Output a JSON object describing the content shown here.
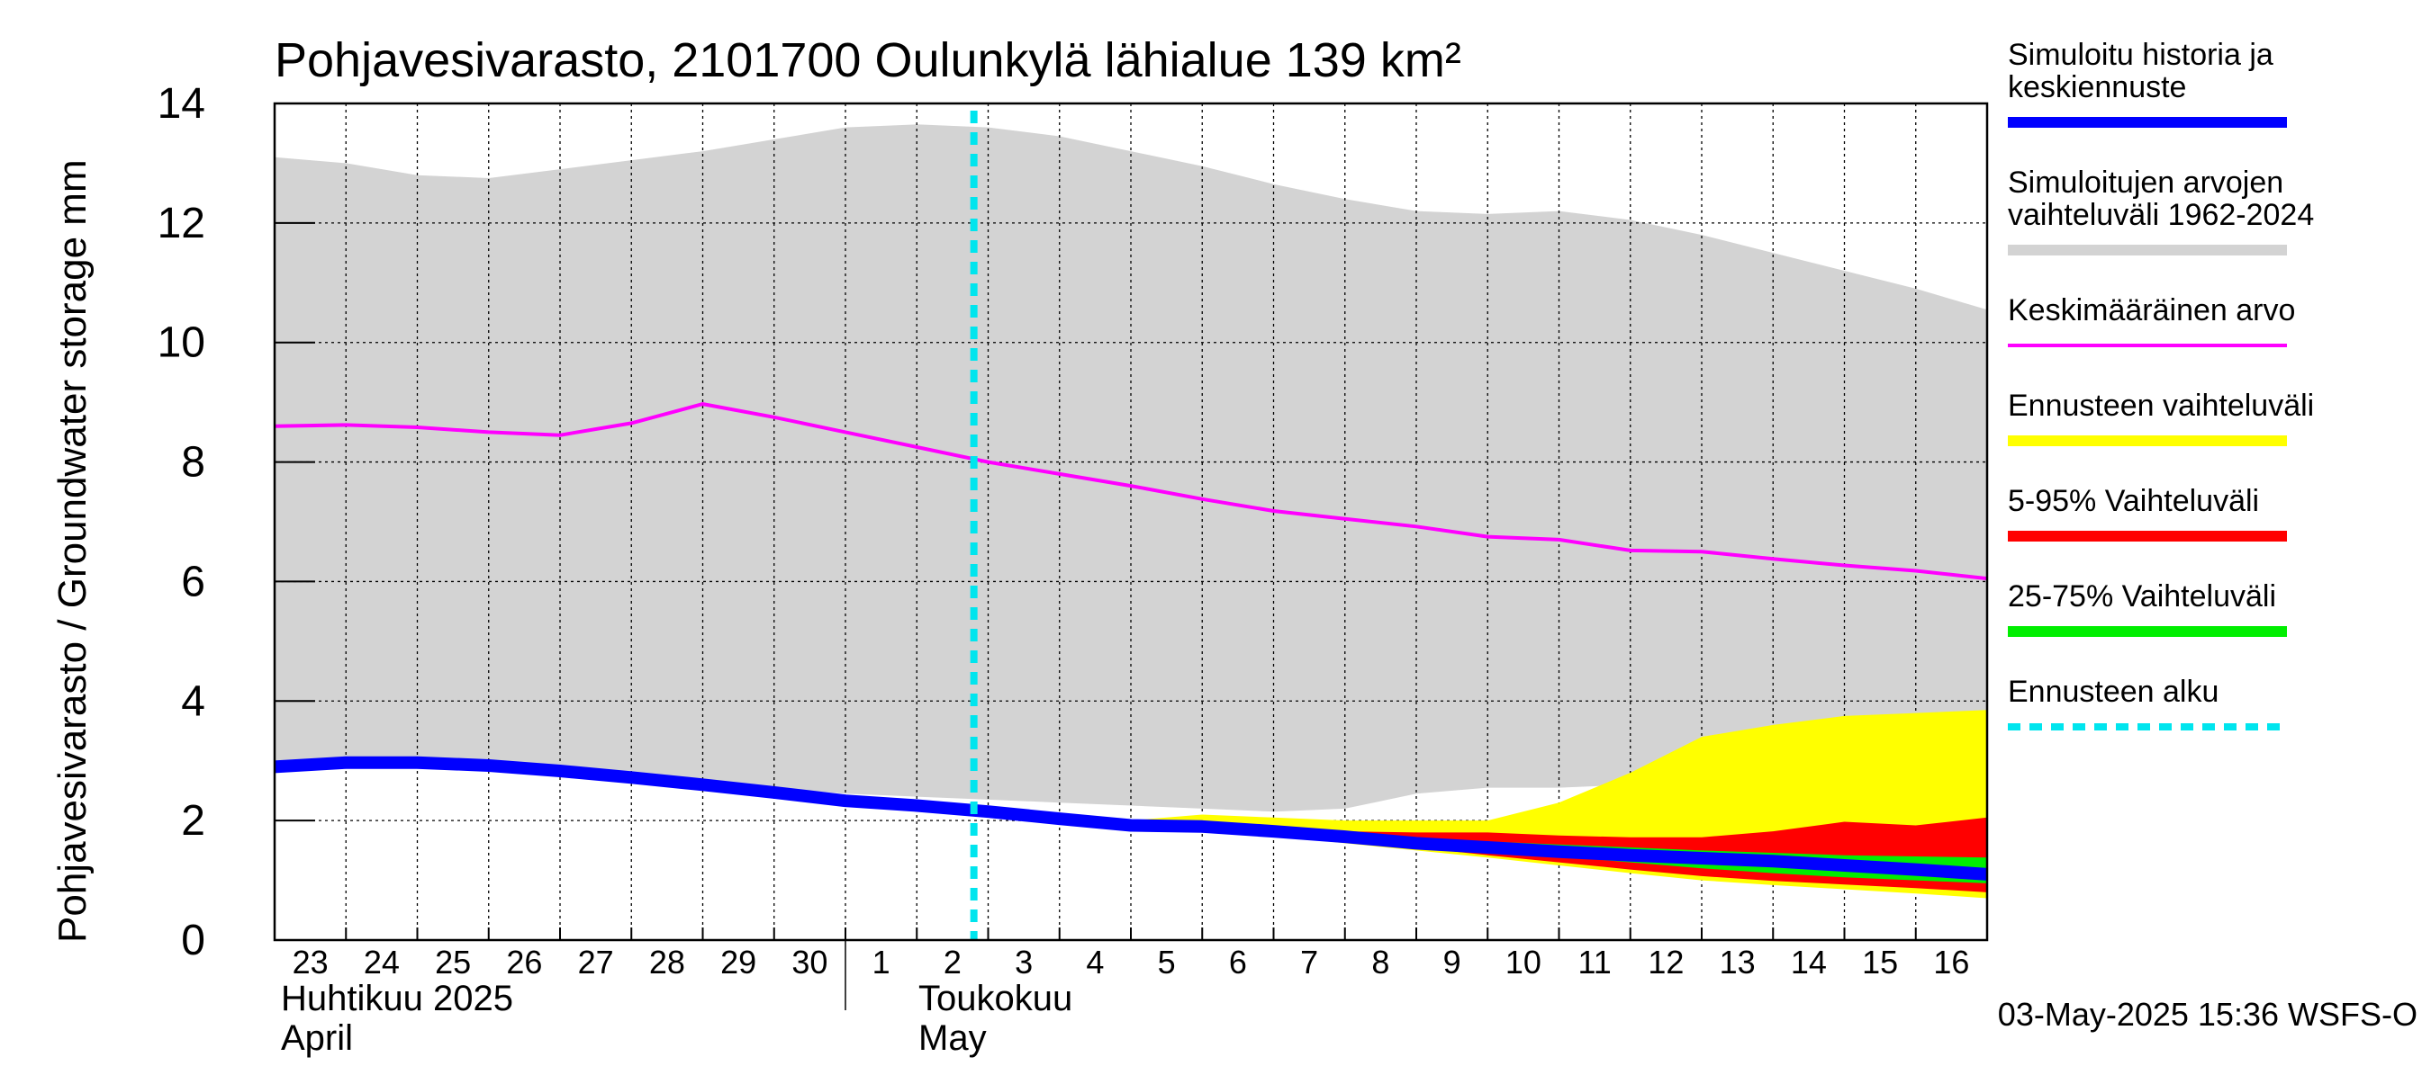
{
  "chart_data": {
    "type": "area",
    "title": "Pohjavesivarasto, 2101700 Oulunkylä lähialue 139 km²",
    "ylabel": "Pohjavesivarasto / Groundwater storage   mm",
    "ylim": [
      0,
      14
    ],
    "yticks": [
      0,
      2,
      4,
      6,
      8,
      10,
      12,
      14
    ],
    "grid": true,
    "legend_position": "right",
    "x_day_start": 23,
    "x_day_end": 47,
    "x_ticks": [
      {
        "day": 23,
        "label": "23"
      },
      {
        "day": 24,
        "label": "24"
      },
      {
        "day": 25,
        "label": "25"
      },
      {
        "day": 26,
        "label": "26"
      },
      {
        "day": 27,
        "label": "27"
      },
      {
        "day": 28,
        "label": "28"
      },
      {
        "day": 29,
        "label": "29"
      },
      {
        "day": 30,
        "label": "30"
      },
      {
        "day": 31,
        "label": "1"
      },
      {
        "day": 32,
        "label": "2"
      },
      {
        "day": 33,
        "label": "3"
      },
      {
        "day": 34,
        "label": "4"
      },
      {
        "day": 35,
        "label": "5"
      },
      {
        "day": 36,
        "label": "6"
      },
      {
        "day": 37,
        "label": "7"
      },
      {
        "day": 38,
        "label": "8"
      },
      {
        "day": 39,
        "label": "9"
      },
      {
        "day": 40,
        "label": "10"
      },
      {
        "day": 41,
        "label": "11"
      },
      {
        "day": 42,
        "label": "12"
      },
      {
        "day": 43,
        "label": "13"
      },
      {
        "day": 44,
        "label": "14"
      },
      {
        "day": 45,
        "label": "15"
      },
      {
        "day": 46,
        "label": "16"
      }
    ],
    "month_labels": [
      {
        "day": 23,
        "line1": "Huhtikuu  2025",
        "line2": "April"
      },
      {
        "day": 31,
        "line1": "Toukokuu",
        "line2": "May"
      }
    ],
    "forecast_start_day": 33,
    "history_range": {
      "name": "Simuloitujen arvojen vaihteluväli 1962-2024",
      "color": "#d3d3d3",
      "x": [
        23,
        24,
        25,
        26,
        27,
        28,
        29,
        30,
        31,
        32,
        33,
        34,
        35,
        36,
        37,
        38,
        39,
        40,
        41,
        42,
        43,
        44,
        45,
        46,
        47
      ],
      "upper": [
        13.1,
        13.0,
        12.8,
        12.75,
        12.9,
        13.05,
        13.2,
        13.4,
        13.6,
        13.65,
        13.6,
        13.45,
        13.2,
        12.95,
        12.65,
        12.4,
        12.2,
        12.15,
        12.2,
        12.05,
        11.8,
        11.5,
        11.2,
        10.9,
        10.55
      ],
      "lower": [
        3.0,
        3.0,
        2.95,
        2.9,
        2.85,
        2.75,
        2.65,
        2.55,
        2.45,
        2.4,
        2.35,
        2.3,
        2.25,
        2.2,
        2.15,
        2.2,
        2.45,
        2.55,
        2.55,
        2.6,
        2.65,
        2.65,
        2.6,
        2.5,
        2.4
      ]
    },
    "mean": {
      "name": "Keskimääräinen arvo",
      "color": "#ff00ff",
      "x": [
        23,
        24,
        25,
        26,
        27,
        28,
        29,
        30,
        31,
        32,
        33,
        34,
        35,
        36,
        37,
        38,
        39,
        40,
        41,
        42,
        43,
        44,
        45,
        46,
        47
      ],
      "values": [
        8.6,
        8.62,
        8.58,
        8.5,
        8.45,
        8.65,
        8.97,
        8.75,
        8.5,
        8.25,
        8.0,
        7.8,
        7.6,
        7.38,
        7.18,
        7.05,
        6.92,
        6.75,
        6.7,
        6.52,
        6.5,
        6.38,
        6.27,
        6.18,
        6.05
      ]
    },
    "forecast_range": {
      "name": "Ennusteen vaihteluväli",
      "color": "#ffff00",
      "x": [
        35,
        36,
        37,
        38,
        39,
        40,
        41,
        42,
        43,
        44,
        45,
        46,
        47
      ],
      "upper": [
        2.0,
        2.1,
        2.05,
        2.0,
        2.0,
        2.0,
        2.3,
        2.8,
        3.4,
        3.6,
        3.75,
        3.8,
        3.85
      ],
      "lower": [
        1.9,
        1.85,
        1.75,
        1.62,
        1.5,
        1.38,
        1.25,
        1.12,
        1.0,
        0.92,
        0.85,
        0.78,
        0.7
      ]
    },
    "p5_95": {
      "name": "5-95% Vaihteluväli",
      "color": "#ff0000",
      "x": [
        35,
        36,
        37,
        38,
        39,
        40,
        41,
        42,
        43,
        44,
        45,
        46,
        47
      ],
      "upper": [
        1.92,
        1.9,
        1.85,
        1.82,
        1.8,
        1.8,
        1.75,
        1.72,
        1.72,
        1.82,
        1.98,
        1.92,
        2.05
      ],
      "lower": [
        1.9,
        1.86,
        1.78,
        1.66,
        1.55,
        1.42,
        1.3,
        1.18,
        1.07,
        0.99,
        0.93,
        0.87,
        0.8
      ]
    },
    "p25_75": {
      "name": "25-75% Vaihteluväli",
      "color": "#00ee00",
      "x": [
        35,
        36,
        37,
        38,
        39,
        40,
        41,
        42,
        43,
        44,
        45,
        46,
        47
      ],
      "upper": [
        1.9,
        1.88,
        1.82,
        1.76,
        1.7,
        1.65,
        1.6,
        1.55,
        1.5,
        1.46,
        1.42,
        1.4,
        1.38
      ],
      "lower": [
        1.9,
        1.87,
        1.8,
        1.7,
        1.6,
        1.5,
        1.4,
        1.3,
        1.2,
        1.12,
        1.05,
        1.0,
        0.95
      ]
    },
    "simulated": {
      "name": "Simuloitu historia ja keskiennuste",
      "color": "#0000ff",
      "x": [
        23,
        24,
        25,
        26,
        27,
        28,
        29,
        30,
        31,
        32,
        33,
        34,
        35,
        36,
        37,
        38,
        39,
        40,
        41,
        42,
        43,
        44,
        45,
        46,
        47
      ],
      "values": [
        2.9,
        2.97,
        2.97,
        2.92,
        2.83,
        2.72,
        2.6,
        2.47,
        2.33,
        2.25,
        2.15,
        2.03,
        1.92,
        1.9,
        1.82,
        1.73,
        1.62,
        1.55,
        1.48,
        1.42,
        1.37,
        1.32,
        1.25,
        1.18,
        1.1
      ]
    },
    "forecast_start_line": {
      "name": "Ennusteen alku",
      "color": "#00e5ee"
    },
    "legend": [
      {
        "label_lines": [
          "Simuloitu historia ja",
          "keskiennuste"
        ],
        "color": "#0000ff",
        "style": "thick"
      },
      {
        "label_lines": [
          "Simuloitujen arvojen",
          "vaihteluväli 1962-2024"
        ],
        "color": "#d3d3d3",
        "style": "thick"
      },
      {
        "label_lines": [
          "Keskimääräinen arvo"
        ],
        "color": "#ff00ff",
        "style": "thin"
      },
      {
        "label_lines": [
          "Ennusteen vaihteluväli"
        ],
        "color": "#ffff00",
        "style": "thick"
      },
      {
        "label_lines": [
          "5-95% Vaihteluväli"
        ],
        "color": "#ff0000",
        "style": "thick"
      },
      {
        "label_lines": [
          "25-75% Vaihteluväli"
        ],
        "color": "#00ee00",
        "style": "thick"
      },
      {
        "label_lines": [
          "Ennusteen alku"
        ],
        "color": "#00e5ee",
        "style": "dashed"
      }
    ],
    "footer": "03-May-2025 15:36 WSFS-O"
  }
}
